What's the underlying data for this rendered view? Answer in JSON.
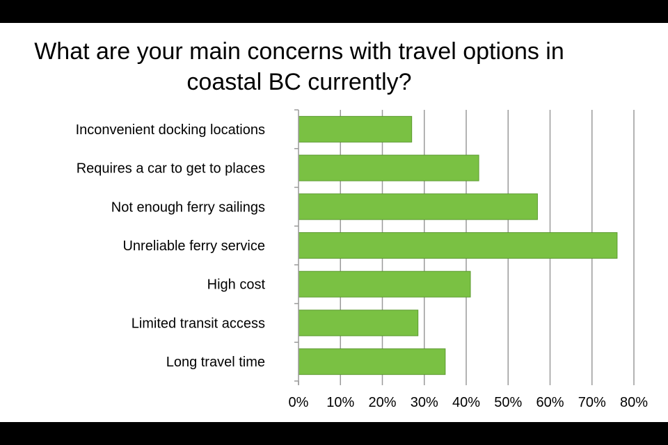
{
  "chart_data": {
    "type": "bar",
    "orientation": "horizontal",
    "title": "What are your main concerns with travel options in coastal BC currently?",
    "categories": [
      "Inconvenient docking locations",
      "Requires a car to get to places",
      "Not enough ferry sailings",
      "Unreliable ferry service",
      "High cost",
      "Limited transit access",
      "Long travel time"
    ],
    "values": [
      27,
      43,
      57,
      76,
      41,
      28.5,
      35
    ],
    "xlim": [
      0,
      80
    ],
    "xticks": [
      0,
      10,
      20,
      30,
      40,
      50,
      60,
      70,
      80
    ],
    "xtick_labels": [
      "0%",
      "10%",
      "20%",
      "30%",
      "40%",
      "50%",
      "60%",
      "70%",
      "80%"
    ],
    "grid": "vertical",
    "bar_color": "#7ac143",
    "bar_border_color": "#5c9a30",
    "grid_color": "#9a9a9a"
  }
}
